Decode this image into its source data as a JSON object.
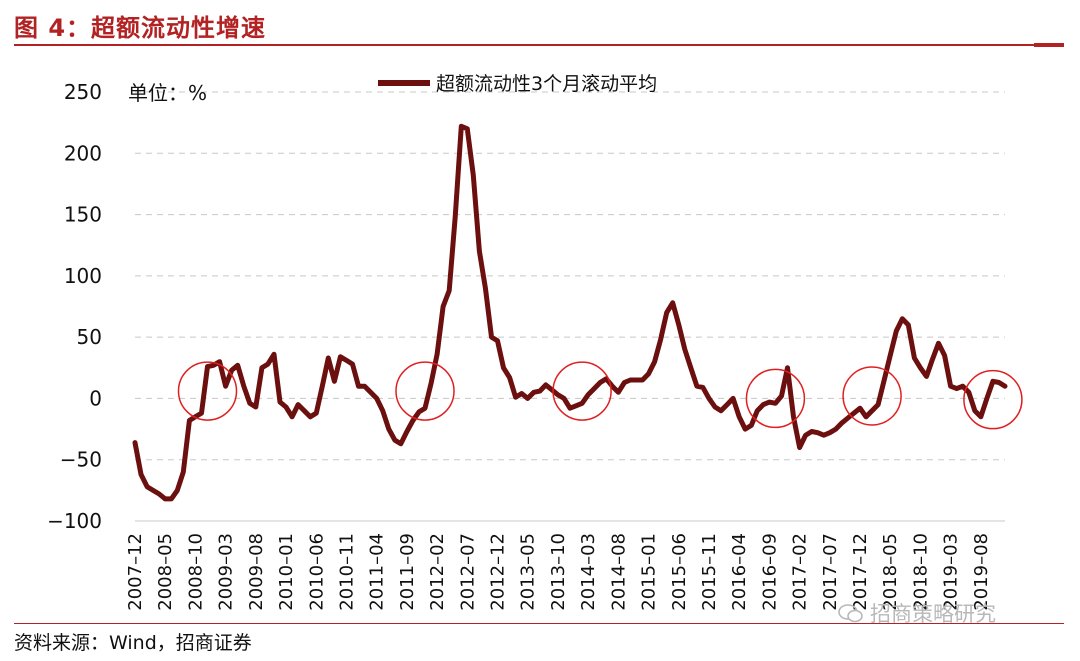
{
  "figure": {
    "title": "图 4：超额流动性增速",
    "source": "资料来源：Wind，招商证券",
    "watermark": "招商策略研究"
  },
  "colors": {
    "line": "#6b0f0f",
    "accent": "#b22222",
    "circle": "#e02020",
    "grid": "#c8c8c8"
  },
  "chart_data": {
    "type": "line",
    "unit_label": "单位：%",
    "ylim": [
      -100,
      250
    ],
    "yticks": [
      -100,
      -50,
      0,
      50,
      100,
      150,
      200,
      250
    ],
    "grid": true,
    "legend_position": "top-center",
    "xtick_labels": [
      "2007-12",
      "2008-05",
      "2008-10",
      "2009-03",
      "2009-08",
      "2010-01",
      "2010-06",
      "2010-11",
      "2011-04",
      "2011-09",
      "2012-02",
      "2012-07",
      "2012-12",
      "2013-05",
      "2013-10",
      "2014-03",
      "2014-08",
      "2015-01",
      "2015-06",
      "2015-11",
      "2016-04",
      "2016-09",
      "2017-02",
      "2017-07",
      "2017-12",
      "2018-05",
      "2018-10",
      "2019-03",
      "2019-08"
    ],
    "start_month": "2007-12",
    "series": [
      {
        "name": "超额流动性3个月滚动平均",
        "values": [
          -36,
          -62,
          -72,
          -75,
          -78,
          -82,
          -82,
          -75,
          -60,
          -18,
          -15,
          -12,
          26,
          27,
          30,
          10,
          23,
          27,
          10,
          -4,
          -7,
          25,
          28,
          36,
          -3,
          -7,
          -15,
          -5,
          -10,
          -15,
          -12,
          10,
          33,
          14,
          34,
          31,
          28,
          10,
          10,
          5,
          0,
          -10,
          -25,
          -34,
          -37,
          -27,
          -18,
          -11,
          -8,
          12,
          36,
          75,
          88,
          148,
          222,
          220,
          182,
          120,
          90,
          50,
          47,
          25,
          17,
          1,
          4,
          0,
          5,
          6,
          11,
          7,
          3,
          0,
          -8,
          -6,
          -4,
          3,
          8,
          13,
          16,
          10,
          5,
          13,
          15,
          15,
          15,
          20,
          30,
          48,
          70,
          78,
          60,
          40,
          25,
          10,
          9,
          0,
          -7,
          -10,
          -5,
          0,
          -15,
          -25,
          -22,
          -10,
          -5,
          -3,
          -4,
          2,
          25,
          -15,
          -40,
          -30,
          -27,
          -28,
          -30,
          -28,
          -25,
          -20,
          -16,
          -12,
          -8,
          -15,
          -10,
          -5,
          15,
          35,
          55,
          65,
          60,
          33,
          25,
          18,
          32,
          45,
          35,
          10,
          8,
          10,
          5,
          -10,
          -15,
          0,
          14,
          13,
          10
        ]
      }
    ],
    "highlight_circles": [
      {
        "center_month": "2008-12",
        "y": 6
      },
      {
        "center_month": "2011-12",
        "y": 6
      },
      {
        "center_month": "2014-02",
        "y": 6
      },
      {
        "center_month": "2016-10",
        "y": 0
      },
      {
        "center_month": "2018-02",
        "y": 2
      },
      {
        "center_month": "2019-10",
        "y": -1
      }
    ]
  }
}
